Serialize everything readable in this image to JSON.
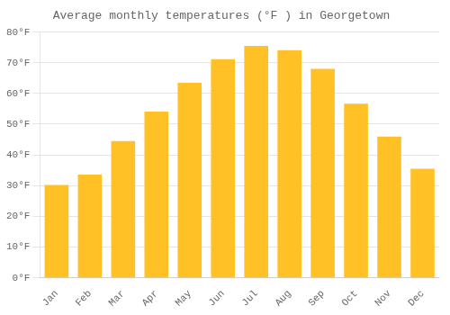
{
  "chart_data": {
    "type": "bar",
    "title": "Average monthly temperatures (°F ) in Georgetown",
    "categories": [
      "Jan",
      "Feb",
      "Mar",
      "Apr",
      "May",
      "Jun",
      "Jul",
      "Aug",
      "Sep",
      "Oct",
      "Nov",
      "Dec"
    ],
    "values": [
      30.2,
      33.6,
      44.5,
      54.1,
      63.5,
      71.2,
      75.5,
      74.1,
      68.0,
      56.7,
      46.0,
      35.5
    ],
    "color": "#FFC125",
    "ylim": [
      0,
      80
    ],
    "yticks": [
      {
        "value": 0,
        "label": "0°F"
      },
      {
        "value": 10,
        "label": "10°F"
      },
      {
        "value": 20,
        "label": "20°F"
      },
      {
        "value": 30,
        "label": "30°F"
      },
      {
        "value": 40,
        "label": "40°F"
      },
      {
        "value": 50,
        "label": "50°F"
      },
      {
        "value": 60,
        "label": "60°F"
      },
      {
        "value": 70,
        "label": "70°F"
      },
      {
        "value": 80,
        "label": "80°F"
      }
    ],
    "grid": true
  }
}
